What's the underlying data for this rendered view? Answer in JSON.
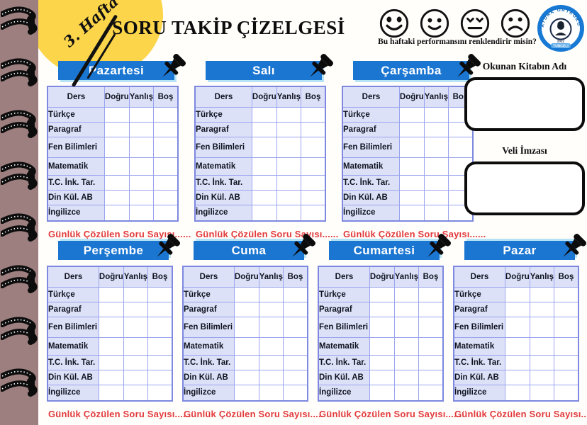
{
  "week_badge": "3. Hafta",
  "title": "SORU TAKİP ÇİZELGESİ",
  "mood": {
    "question": "Bu haftaki performansını renklendirir misin?",
    "faces": [
      "very-happy-face-icon",
      "happy-face-icon",
      "neutral-face-icon",
      "sad-face-icon"
    ]
  },
  "logo": {
    "school": "ATATÜRK ORTAOKULU",
    "year": "2022",
    "city": "TUNCELİ"
  },
  "right_panel": {
    "book_label": "Okunan Kitabın Adı",
    "signature_label": "Veli İmzası"
  },
  "table": {
    "headers": [
      "Ders",
      "Doğru",
      "Yanlış",
      "Boş"
    ],
    "subjects": [
      "Türkçe",
      "Paragraf",
      "Fen Bilimleri",
      "Matematik",
      "T.C. İnk. Tar.",
      "Din Kül. AB",
      "İngilizce"
    ]
  },
  "days": [
    {
      "name": "Pazartesi",
      "footer": "Günlük Çözülen Soru Sayısı......"
    },
    {
      "name": "Salı",
      "footer": "Günlük Çözülen Soru Sayısı......"
    },
    {
      "name": "Çarşamba",
      "footer": "Günlük Çözülen Soru Sayısı......"
    },
    {
      "name": "Perşembe",
      "footer": "Günlük Çözülen Soru Sayısı......"
    },
    {
      "name": "Cuma",
      "footer": "Günlük Çözülen Soru Sayısı....."
    },
    {
      "name": "Cumartesi",
      "footer": "Günlük Çözülen Soru Sayısı......"
    },
    {
      "name": "Pazar",
      "footer": "Günlük Çözülen Soru Sayısı......"
    }
  ],
  "colors": {
    "banner_blue": "#1b76d2",
    "banner_shadow": "#b7e3f6",
    "lavender": "#dde1f8",
    "cell_border": "#9aa4ee",
    "red_text": "#e23a3c",
    "yellow": "#fcd54a",
    "spine_mauve": "#9c7f7e"
  }
}
